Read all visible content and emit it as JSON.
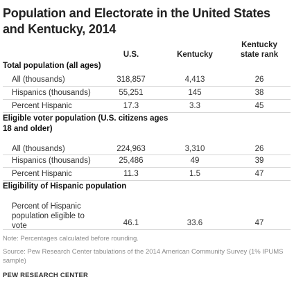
{
  "title": "Population and Electorate in the United States and Kentucky, 2014",
  "columns": {
    "us": "U.S.",
    "kentucky": "Kentucky",
    "rank": "Kentucky state rank"
  },
  "sections": [
    {
      "heading": "Total population (all ages)",
      "rows": [
        {
          "label": "All (thousands)",
          "us": "318,857",
          "kentucky": "4,413",
          "rank": "26"
        },
        {
          "label": "Hispanics (thousands)",
          "us": "55,251",
          "kentucky": "145",
          "rank": "38"
        },
        {
          "label": "Percent Hispanic",
          "us": "17.3",
          "kentucky": "3.3",
          "rank": "45"
        }
      ]
    },
    {
      "heading": "Eligible voter population (U.S. citizens ages 18 and older)",
      "rows": [
        {
          "label": "All (thousands)",
          "us": "224,963",
          "kentucky": "3,310",
          "rank": "26"
        },
        {
          "label": "Hispanics (thousands)",
          "us": "25,486",
          "kentucky": "49",
          "rank": "39"
        },
        {
          "label": "Percent Hispanic",
          "us": "11.3",
          "kentucky": "1.5",
          "rank": "47"
        }
      ]
    },
    {
      "heading": "Eligibility of Hispanic population",
      "rows": [
        {
          "label": "Percent of Hispanic population eligible to vote",
          "us": "46.1",
          "kentucky": "33.6",
          "rank": "47"
        }
      ]
    }
  ],
  "note": "Note: Percentages calculated before rounding.",
  "source": "Source: Pew Research Center tabulations of the 2014 American Community Survey (1% IPUMS sample)",
  "footer": "PEW RESEARCH CENTER"
}
